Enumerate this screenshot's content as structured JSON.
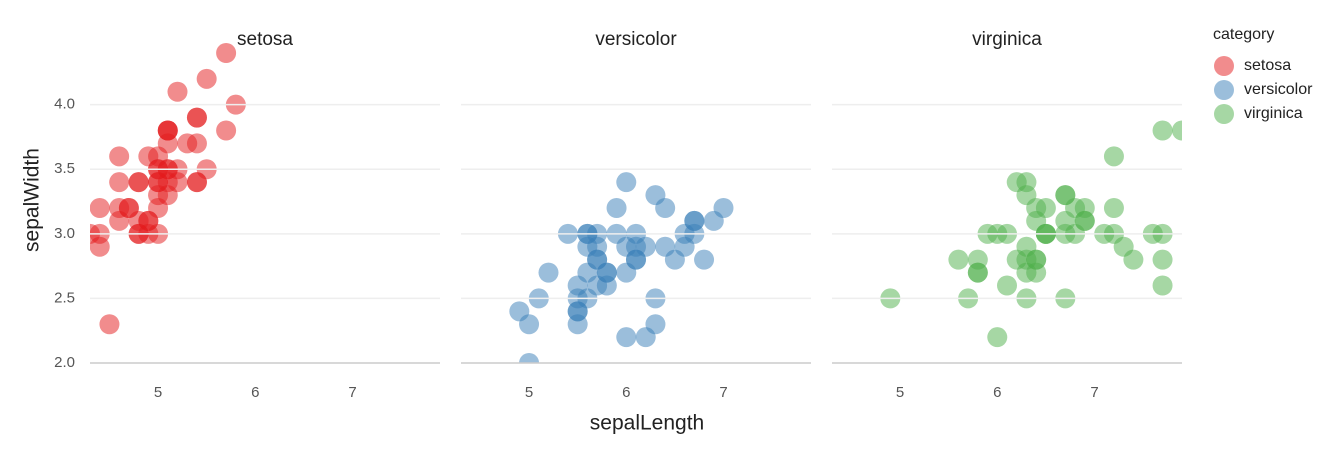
{
  "chart_data": {
    "type": "scatter",
    "facet_by": "series",
    "xlabel": "sepalLength",
    "ylabel": "sepalWidth",
    "legend_title": "category",
    "legend": "top-right",
    "grid": true,
    "xlim": [
      4.3,
      7.9
    ],
    "xticks": [
      5,
      6,
      7
    ],
    "ylim": [
      2.0,
      4.4
    ],
    "yticks": [
      {
        "value": 2.0,
        "label": "2.0"
      },
      2.5,
      {
        "value": 3.0,
        "label": "3.0"
      },
      3.5,
      {
        "value": 4.0,
        "label": "4.0"
      }
    ],
    "series": [
      {
        "name": "setosa",
        "color": "#e41a1c",
        "x": [
          5.1,
          4.9,
          4.7,
          4.6,
          5.0,
          5.4,
          4.6,
          5.0,
          4.4,
          4.9,
          5.4,
          4.8,
          4.8,
          4.3,
          5.8,
          5.7,
          5.4,
          5.1,
          5.7,
          5.1,
          5.4,
          5.1,
          4.6,
          5.1,
          4.8,
          5.0,
          5.0,
          5.2,
          5.2,
          4.7,
          4.8,
          5.4,
          5.2,
          5.5,
          4.9,
          5.0,
          5.5,
          4.9,
          4.4,
          5.1,
          5.0,
          4.5,
          4.4,
          5.0,
          5.1,
          4.8,
          5.1,
          4.6,
          5.3,
          5.0
        ],
        "y": [
          3.5,
          3.0,
          3.2,
          3.1,
          3.6,
          3.9,
          3.4,
          3.4,
          2.9,
          3.1,
          3.7,
          3.4,
          3.0,
          3.0,
          4.0,
          4.4,
          3.9,
          3.5,
          3.8,
          3.8,
          3.4,
          3.7,
          3.6,
          3.3,
          3.4,
          3.0,
          3.4,
          3.5,
          3.4,
          3.2,
          3.1,
          3.4,
          4.1,
          4.2,
          3.1,
          3.2,
          3.5,
          3.6,
          3.0,
          3.4,
          3.5,
          2.3,
          3.2,
          3.5,
          3.8,
          3.0,
          3.8,
          3.2,
          3.7,
          3.3
        ]
      },
      {
        "name": "versicolor",
        "color": "#377eb8",
        "x": [
          7.0,
          6.4,
          6.9,
          5.5,
          6.5,
          5.7,
          6.3,
          4.9,
          6.6,
          5.2,
          5.0,
          5.9,
          6.0,
          6.1,
          5.6,
          6.7,
          5.6,
          5.8,
          6.2,
          5.6,
          5.9,
          6.1,
          6.3,
          6.1,
          6.4,
          6.6,
          6.8,
          6.7,
          6.0,
          5.7,
          5.5,
          5.5,
          5.8,
          6.0,
          5.4,
          6.0,
          6.7,
          6.3,
          5.6,
          5.5,
          5.5,
          6.1,
          5.8,
          5.0,
          5.6,
          5.7,
          5.7,
          6.2,
          5.1,
          5.7
        ],
        "y": [
          3.2,
          3.2,
          3.1,
          2.3,
          2.8,
          2.8,
          3.3,
          2.4,
          2.9,
          2.7,
          2.0,
          3.0,
          2.2,
          2.9,
          2.9,
          3.1,
          3.0,
          2.7,
          2.2,
          2.5,
          3.2,
          2.8,
          2.5,
          2.8,
          2.9,
          3.0,
          2.8,
          3.0,
          2.9,
          2.6,
          2.4,
          2.4,
          2.7,
          2.7,
          3.0,
          3.4,
          3.1,
          2.3,
          3.0,
          2.5,
          2.6,
          3.0,
          2.6,
          2.3,
          2.7,
          3.0,
          2.9,
          2.9,
          2.5,
          2.8
        ]
      },
      {
        "name": "virginica",
        "color": "#4daf4a",
        "x": [
          6.3,
          5.8,
          7.1,
          6.3,
          6.5,
          7.6,
          4.9,
          7.3,
          6.7,
          7.2,
          6.5,
          6.4,
          6.8,
          5.7,
          5.8,
          6.4,
          6.5,
          7.7,
          7.7,
          6.0,
          6.9,
          5.6,
          7.7,
          6.3,
          6.7,
          7.2,
          6.2,
          6.1,
          6.4,
          7.2,
          7.4,
          7.9,
          6.4,
          6.3,
          6.1,
          7.7,
          6.3,
          6.4,
          6.0,
          6.9,
          6.7,
          6.9,
          5.8,
          6.8,
          6.7,
          6.7,
          6.3,
          6.5,
          6.2,
          5.9
        ],
        "y": [
          3.3,
          2.7,
          3.0,
          2.9,
          3.0,
          3.0,
          2.5,
          2.9,
          2.5,
          3.6,
          3.2,
          2.7,
          3.0,
          2.5,
          2.8,
          3.2,
          3.0,
          3.8,
          2.6,
          2.2,
          3.2,
          2.8,
          2.8,
          2.7,
          3.3,
          3.2,
          2.8,
          3.0,
          2.8,
          3.0,
          2.8,
          3.8,
          2.8,
          2.8,
          2.6,
          3.0,
          3.4,
          3.1,
          3.0,
          3.1,
          3.1,
          3.1,
          2.7,
          3.2,
          3.3,
          3.0,
          2.5,
          3.0,
          3.4,
          3.0
        ]
      }
    ]
  }
}
